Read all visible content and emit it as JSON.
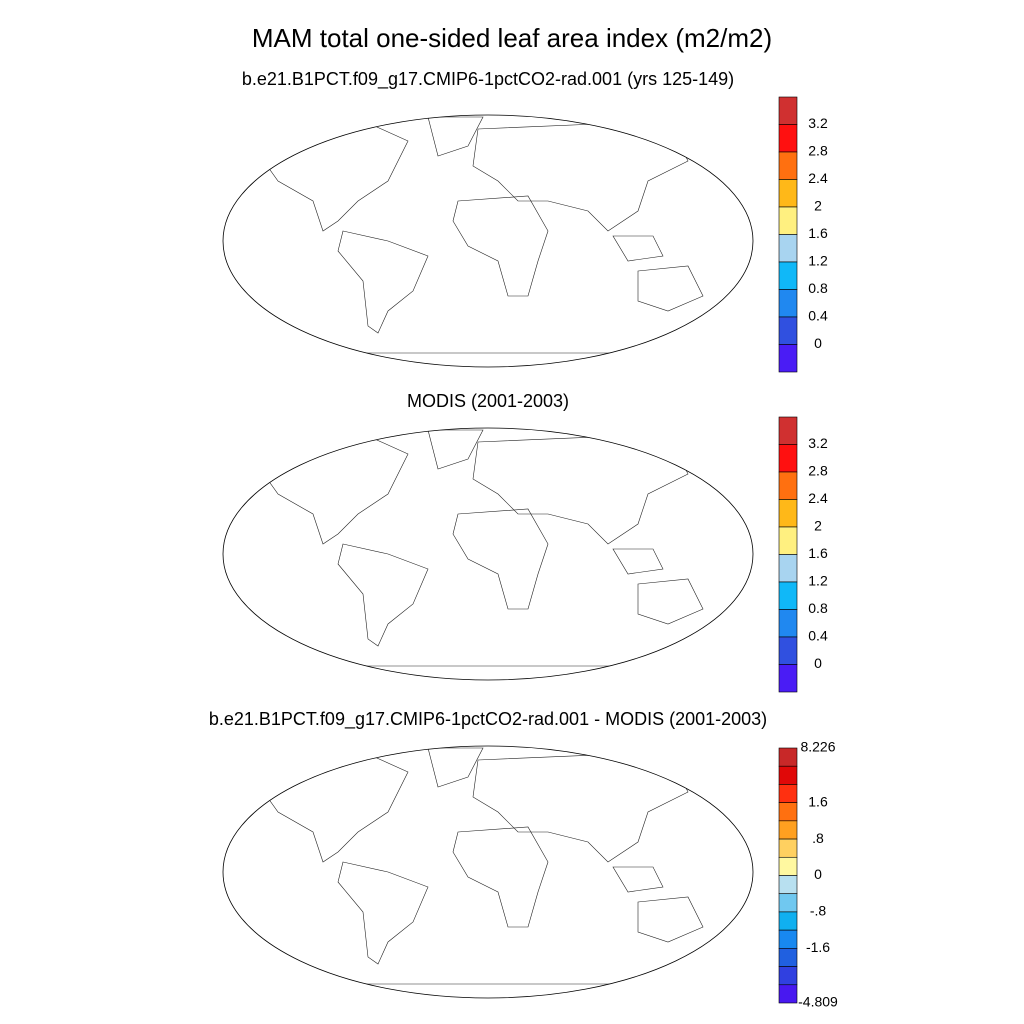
{
  "title": "MAM total one-sided leaf area index (m2/m2)",
  "panels": [
    {
      "title": "b.e21.B1PCT.f09_g17.CMIP6-1pctCO2-rad.001 (yrs 125-149)",
      "colorbar": {
        "colors": [
          "#d03030",
          "#ff1010",
          "#ff7010",
          "#ffb818",
          "#fff080",
          "#a8d4f0",
          "#10b8f8",
          "#2088f0",
          "#3050e0",
          "#4a1cf5"
        ],
        "labels": [
          "3.2",
          "2.8",
          "2.4",
          "2",
          "1.6",
          "1.2",
          "0.8",
          "0.4",
          "0"
        ]
      }
    },
    {
      "title": "MODIS (2001-2003)",
      "colorbar": {
        "colors": [
          "#d03030",
          "#ff1010",
          "#ff7010",
          "#ffb818",
          "#fff080",
          "#a8d4f0",
          "#10b8f8",
          "#2088f0",
          "#3050e0",
          "#4a1cf5"
        ],
        "labels": [
          "3.2",
          "2.8",
          "2.4",
          "2",
          "1.6",
          "1.2",
          "0.8",
          "0.4",
          "0"
        ]
      }
    },
    {
      "title": "b.e21.B1PCT.f09_g17.CMIP6-1pctCO2-rad.001 - MODIS (2001-2003)",
      "colorbar": {
        "colors": [
          "#c82828",
          "#e00808",
          "#ff3010",
          "#ff7010",
          "#ffa020",
          "#ffd060",
          "#fff8a0",
          "#b8e0f0",
          "#70c8f0",
          "#10b0f0",
          "#1888f0",
          "#2060e0",
          "#3040e0",
          "#4818f0"
        ],
        "labels": [
          "8.226",
          "1.6",
          ".8",
          "0",
          "-.8",
          "-1.6",
          "-4.809"
        ]
      }
    }
  ]
}
